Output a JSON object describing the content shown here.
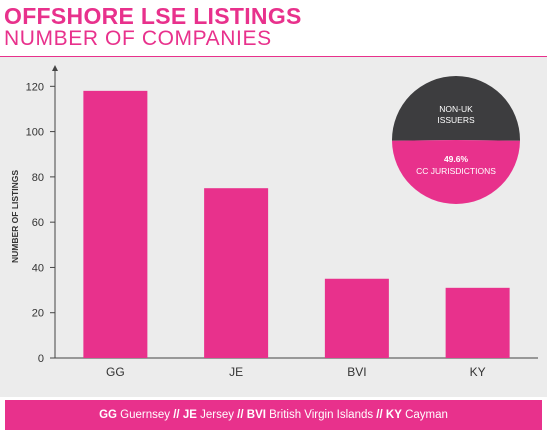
{
  "header": {
    "title": "OFFSHORE LSE LISTINGS",
    "subtitle": "NUMBER OF COMPANIES"
  },
  "chart_data": [
    {
      "type": "bar",
      "categories": [
        "GG",
        "JE",
        "BVI",
        "KY"
      ],
      "values": [
        118,
        75,
        35,
        31
      ],
      "ylabel": "NUMBER OF LISTINGS",
      "xlabel": "",
      "ylim": [
        0,
        125
      ],
      "yticks": [
        0,
        20,
        40,
        60,
        80,
        100,
        120
      ],
      "grid": false,
      "bar_color": "#e8318c"
    },
    {
      "type": "pie",
      "labels": [
        "NON-UK ISSUERS",
        "CC JURISDICTIONS"
      ],
      "values": [
        50.4,
        49.6
      ],
      "value_label": "49.6%",
      "colors": [
        "#3d3d3f",
        "#e8318c"
      ],
      "legend": "inside"
    }
  ],
  "footer": {
    "entries": [
      {
        "code": "GG",
        "name": "Guernsey"
      },
      {
        "code": "JE",
        "name": "Jersey"
      },
      {
        "code": "BVI",
        "name": "British Virgin Islands"
      },
      {
        "code": "KY",
        "name": "Cayman"
      }
    ],
    "separator": "//"
  },
  "colors": {
    "accent": "#e8318c",
    "panel": "#ececec",
    "dark": "#3d3d3f"
  }
}
